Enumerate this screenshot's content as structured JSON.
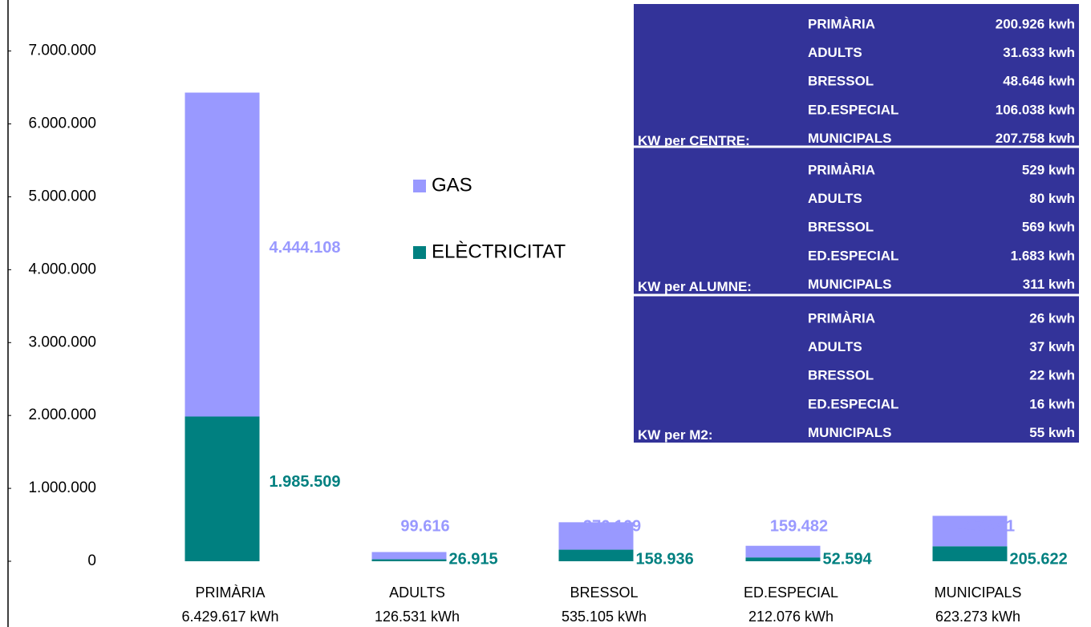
{
  "chart_data": {
    "type": "stacked_bar",
    "categories": [
      "PRIMÀRIA",
      "ADULTS",
      "BRESSOL",
      "ED.ESPECIAL",
      "MUNICIPALS"
    ],
    "total_labels": [
      "6.429.617 kWh",
      "126.531 kWh",
      "535.105 kWh",
      "212.076 kWh",
      "623.273 kWh"
    ],
    "series": [
      {
        "name": "ELÈCTRICITAT",
        "color": "#008080",
        "values": [
          1985509,
          26915,
          158936,
          52594,
          205622
        ],
        "value_labels": [
          "1.985.509",
          "26.915",
          "158.936",
          "52.594",
          "205.622"
        ]
      },
      {
        "name": "GAS",
        "color": "#9999ff",
        "values": [
          4444108,
          99616,
          376169,
          159482,
          417651
        ],
        "value_labels": [
          "4.444.108",
          "99.616",
          "376.169",
          "159.482",
          "417.651"
        ]
      }
    ],
    "ylim": [
      0,
      7700000
    ],
    "yticks": [
      0,
      {
        "value": 1000000,
        "label": "1.000.000"
      },
      {
        "value": 2000000,
        "label": "2.000.000"
      },
      {
        "value": 3000000,
        "label": "3.000.000"
      },
      {
        "value": 4000000,
        "label": "4.000.000"
      },
      {
        "value": 5000000,
        "label": "5.000.000"
      },
      {
        "value": 6000000,
        "label": "6.000.000"
      },
      {
        "value": 7000000,
        "label": "7.000.000"
      }
    ],
    "grid": false
  },
  "table": {
    "groups": [
      {
        "label": "KW per CENTRE:",
        "rows": [
          [
            "PRIMÀRIA",
            "200.926 kwh"
          ],
          [
            "ADULTS",
            "31.633 kwh"
          ],
          [
            "BRESSOL",
            "48.646 kwh"
          ],
          [
            "ED.ESPECIAL",
            "106.038 kwh"
          ],
          [
            "MUNICIPALS",
            "207.758 kwh"
          ]
        ]
      },
      {
        "label": "KW per ALUMNE:",
        "rows": [
          [
            "PRIMÀRIA",
            "529 kwh"
          ],
          [
            "ADULTS",
            "80 kwh"
          ],
          [
            "BRESSOL",
            "569 kwh"
          ],
          [
            "ED.ESPECIAL",
            "1.683 kwh"
          ],
          [
            "MUNICIPALS",
            "311 kwh"
          ]
        ]
      },
      {
        "label": "KW per M2:",
        "rows": [
          [
            "PRIMÀRIA",
            "26 kwh"
          ],
          [
            "ADULTS",
            "37 kwh"
          ],
          [
            "BRESSOL",
            "22 kwh"
          ],
          [
            "ED.ESPECIAL",
            "16 kwh"
          ],
          [
            "MUNICIPALS",
            "55 kwh"
          ]
        ]
      }
    ]
  }
}
